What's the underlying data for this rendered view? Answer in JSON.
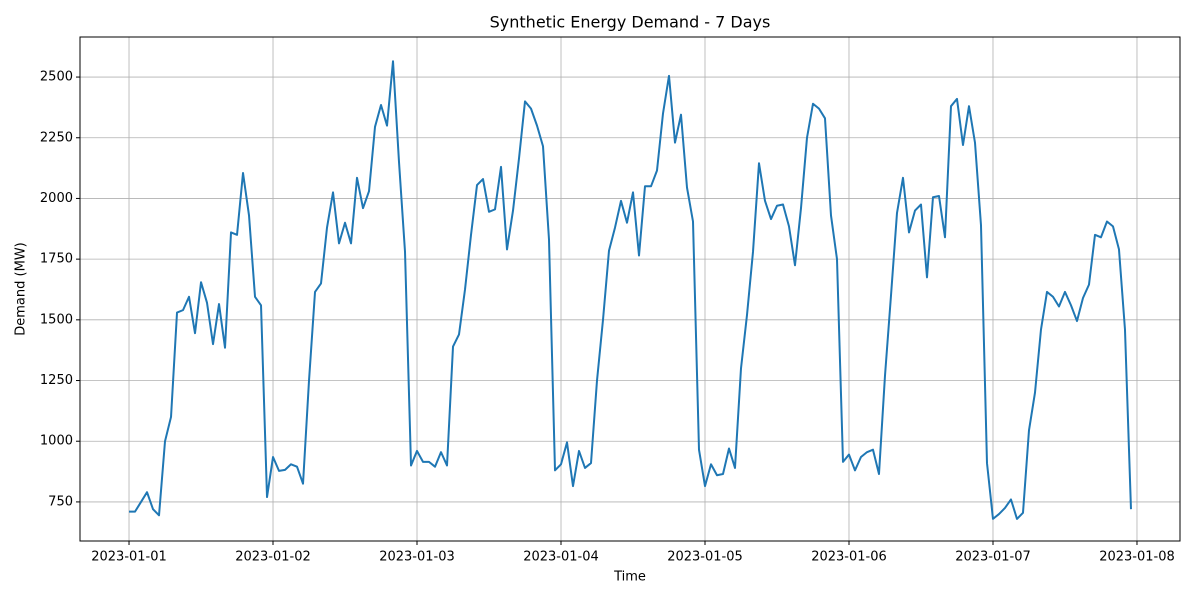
{
  "chart_data": {
    "type": "line",
    "title": "Synthetic Energy Demand - 7 Days",
    "xlabel": "Time",
    "ylabel": "Demand (MW)",
    "x": [
      0,
      1,
      2,
      3,
      4,
      5,
      6,
      7,
      8,
      9,
      10,
      11,
      12,
      13,
      14,
      15,
      16,
      17,
      18,
      19,
      20,
      21,
      22,
      23,
      24,
      25,
      26,
      27,
      28,
      29,
      30,
      31,
      32,
      33,
      34,
      35,
      36,
      37,
      38,
      39,
      40,
      41,
      42,
      43,
      44,
      45,
      46,
      47,
      48,
      49,
      50,
      51,
      52,
      53,
      54,
      55,
      56,
      57,
      58,
      59,
      60,
      61,
      62,
      63,
      64,
      65,
      66,
      67,
      68,
      69,
      70,
      71,
      72,
      73,
      74,
      75,
      76,
      77,
      78,
      79,
      80,
      81,
      82,
      83,
      84,
      85,
      86,
      87,
      88,
      89,
      90,
      91,
      92,
      93,
      94,
      95,
      96,
      97,
      98,
      99,
      100,
      101,
      102,
      103,
      104,
      105,
      106,
      107,
      108,
      109,
      110,
      111,
      112,
      113,
      114,
      115,
      116,
      117,
      118,
      119,
      120,
      121,
      122,
      123,
      124,
      125,
      126,
      127,
      128,
      129,
      130,
      131,
      132,
      133,
      134,
      135,
      136,
      137,
      138,
      139,
      140,
      141,
      142,
      143,
      144,
      145,
      146,
      147,
      148,
      149,
      150,
      151,
      152,
      153,
      154,
      155,
      156,
      157,
      158,
      159,
      160,
      161,
      162,
      163,
      164,
      165,
      166,
      167
    ],
    "series": [
      {
        "name": "Demand",
        "color": "#1f77b4",
        "values": [
          710,
          710,
          750,
          790,
          720,
          695,
          1000,
          1100,
          1530,
          1540,
          1595,
          1445,
          1655,
          1570,
          1400,
          1565,
          1385,
          1860,
          1850,
          2105,
          1930,
          1595,
          1560,
          770,
          935,
          878,
          882,
          905,
          895,
          825,
          1250,
          1615,
          1650,
          1880,
          2025,
          1815,
          1900,
          1815,
          2085,
          1960,
          2030,
          2295,
          2385,
          2300,
          2565,
          2150,
          1780,
          900,
          960,
          915,
          915,
          895,
          955,
          900,
          1390,
          1440,
          1625,
          1850,
          2055,
          2080,
          1945,
          1955,
          2130,
          1790,
          1950,
          2165,
          2400,
          2370,
          2300,
          2215,
          1830,
          880,
          905,
          995,
          815,
          960,
          890,
          910,
          1250,
          1500,
          1785,
          1880,
          1990,
          1900,
          2025,
          1765,
          2050,
          2050,
          2115,
          2350,
          2505,
          2230,
          2345,
          2045,
          1905,
          965,
          815,
          905,
          860,
          865,
          970,
          890,
          1300,
          1520,
          1780,
          2145,
          1990,
          1915,
          1970,
          1975,
          1885,
          1725,
          1960,
          2250,
          2390,
          2370,
          2330,
          1930,
          1750,
          915,
          945,
          880,
          935,
          955,
          965,
          865,
          1270,
          1600,
          1940,
          2085,
          1860,
          1950,
          1975,
          1675,
          2005,
          2010,
          1840,
          2380,
          2410,
          2220,
          2380,
          2230,
          1890,
          910,
          680,
          700,
          725,
          760,
          680,
          705,
          1045,
          1200,
          1460,
          1615,
          1595,
          1555,
          1615,
          1560,
          1495,
          1590,
          1645,
          1850,
          1840,
          1905,
          1885,
          1790,
          1460,
          720
        ]
      }
    ],
    "xlim": [
      -8.17,
      175.17
    ],
    "ylim": [
      589,
      2665
    ],
    "xticks": [
      {
        "value": 0,
        "label": "2023-01-01"
      },
      {
        "value": 24,
        "label": "2023-01-02"
      },
      {
        "value": 48,
        "label": "2023-01-03"
      },
      {
        "value": 72,
        "label": "2023-01-04"
      },
      {
        "value": 96,
        "label": "2023-01-05"
      },
      {
        "value": 120,
        "label": "2023-01-06"
      },
      {
        "value": 144,
        "label": "2023-01-07"
      },
      {
        "value": 168,
        "label": "2023-01-08"
      }
    ],
    "yticks": [
      750,
      1000,
      1250,
      1500,
      1750,
      2000,
      2250,
      2500
    ],
    "grid": true
  }
}
